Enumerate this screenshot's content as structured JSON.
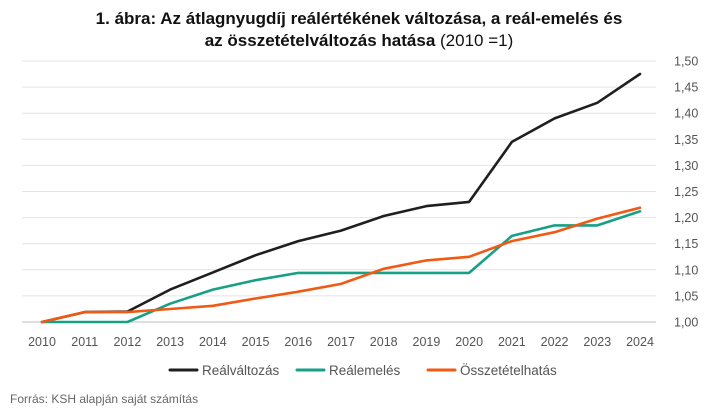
{
  "title": {
    "line1": "1. ábra: Az átlagnyugdíj reálértékének változása, a reál-emelés és",
    "line2_bold": "az összetételváltozás hatása",
    "line2_normal": " (2010 =1)"
  },
  "source": "Forrás: KSH alapján saját számítás",
  "chart_data": {
    "type": "line",
    "title": "1. ábra: Az átlagnyugdíj reálértékének változása, a reál-emelés és az összetételváltozás hatása (2010 =1)",
    "xlabel": "",
    "ylabel": "",
    "ylim": [
      1.0,
      1.5
    ],
    "grid": true,
    "y_axis_position": "right",
    "legend_position": "bottom",
    "categories": [
      "2010",
      "2011",
      "2012",
      "2013",
      "2014",
      "2015",
      "2016",
      "2017",
      "2018",
      "2019",
      "2020",
      "2021",
      "2022",
      "2023",
      "2024"
    ],
    "y_ticks": [
      "1,00",
      "1,05",
      "1,10",
      "1,15",
      "1,20",
      "1,25",
      "1,30",
      "1,35",
      "1,40",
      "1,45",
      "1,50"
    ],
    "series": [
      {
        "name": "Reálváltozás",
        "color": "#1f1f1f",
        "values": [
          1.0,
          1.019,
          1.02,
          1.062,
          1.095,
          1.128,
          1.155,
          1.175,
          1.203,
          1.222,
          1.23,
          1.345,
          1.39,
          1.42,
          1.475
        ]
      },
      {
        "name": "Reálemelés",
        "color": "#17a085",
        "values": [
          1.0,
          1.0,
          1.0,
          1.035,
          1.062,
          1.08,
          1.094,
          1.094,
          1.094,
          1.094,
          1.094,
          1.165,
          1.185,
          1.185,
          1.212
        ]
      },
      {
        "name": "Összetételhatás",
        "color": "#f05a14",
        "values": [
          1.0,
          1.019,
          1.019,
          1.025,
          1.031,
          1.045,
          1.058,
          1.073,
          1.102,
          1.118,
          1.125,
          1.155,
          1.172,
          1.198,
          1.219
        ]
      }
    ]
  }
}
